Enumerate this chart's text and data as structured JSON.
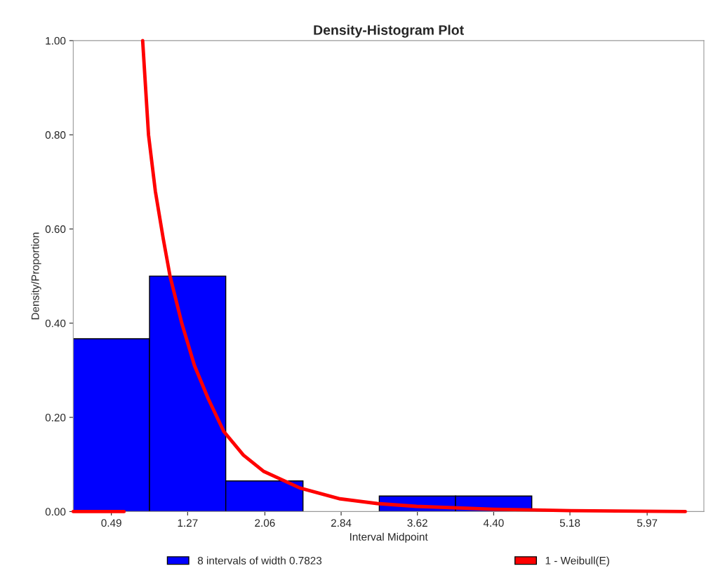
{
  "chart_data": {
    "type": "histogram",
    "title": "Density-Histogram Plot",
    "xlabel": "Interval Midpoint",
    "ylabel": "Density/Proportion",
    "bins": [
      0.1,
      0.88,
      1.66,
      2.45,
      3.23,
      4.01,
      4.79
    ],
    "series": [
      {
        "name": "8 intervals of width 0.7823",
        "color": "#0000ff",
        "values": [
          0.367,
          0.5,
          0.065,
          0,
          0.033,
          0.033
        ]
      },
      {
        "name": "1 - Weibull(E)",
        "type": "line",
        "color": "#ff0000",
        "x": [
          0.1,
          0.62,
          0.7,
          0.81,
          0.87,
          0.94,
          1.02,
          1.09,
          1.21,
          1.34,
          1.48,
          1.64,
          1.84,
          2.05,
          2.42,
          2.83,
          3.21,
          3.61,
          4.4,
          5.19,
          6.36
        ],
        "values": [
          0,
          0,
          null,
          1.0,
          0.8,
          0.68,
          0.58,
          0.5,
          0.4,
          0.31,
          0.24,
          0.17,
          0.12,
          0.085,
          0.05,
          0.027,
          0.017,
          0.011,
          0.005,
          0.002,
          0
        ]
      }
    ],
    "xlim": [
      0.1,
      6.55
    ],
    "ylim": [
      0,
      1.0
    ],
    "xticks": [
      0.49,
      1.27,
      2.06,
      2.84,
      3.62,
      {
        "value": 4.4,
        "label": "4.40"
      },
      5.18,
      5.97
    ],
    "yticks": [
      {
        "value": 0,
        "label": "0.00"
      },
      {
        "value": 0.2,
        "label": "0.20"
      },
      {
        "value": 0.4,
        "label": "0.40"
      },
      {
        "value": 0.6,
        "label": "0.60"
      },
      {
        "value": 0.8,
        "label": "0.80"
      },
      {
        "value": 1.0,
        "label": "1.00"
      }
    ],
    "grid": false,
    "legend": "bottom"
  }
}
